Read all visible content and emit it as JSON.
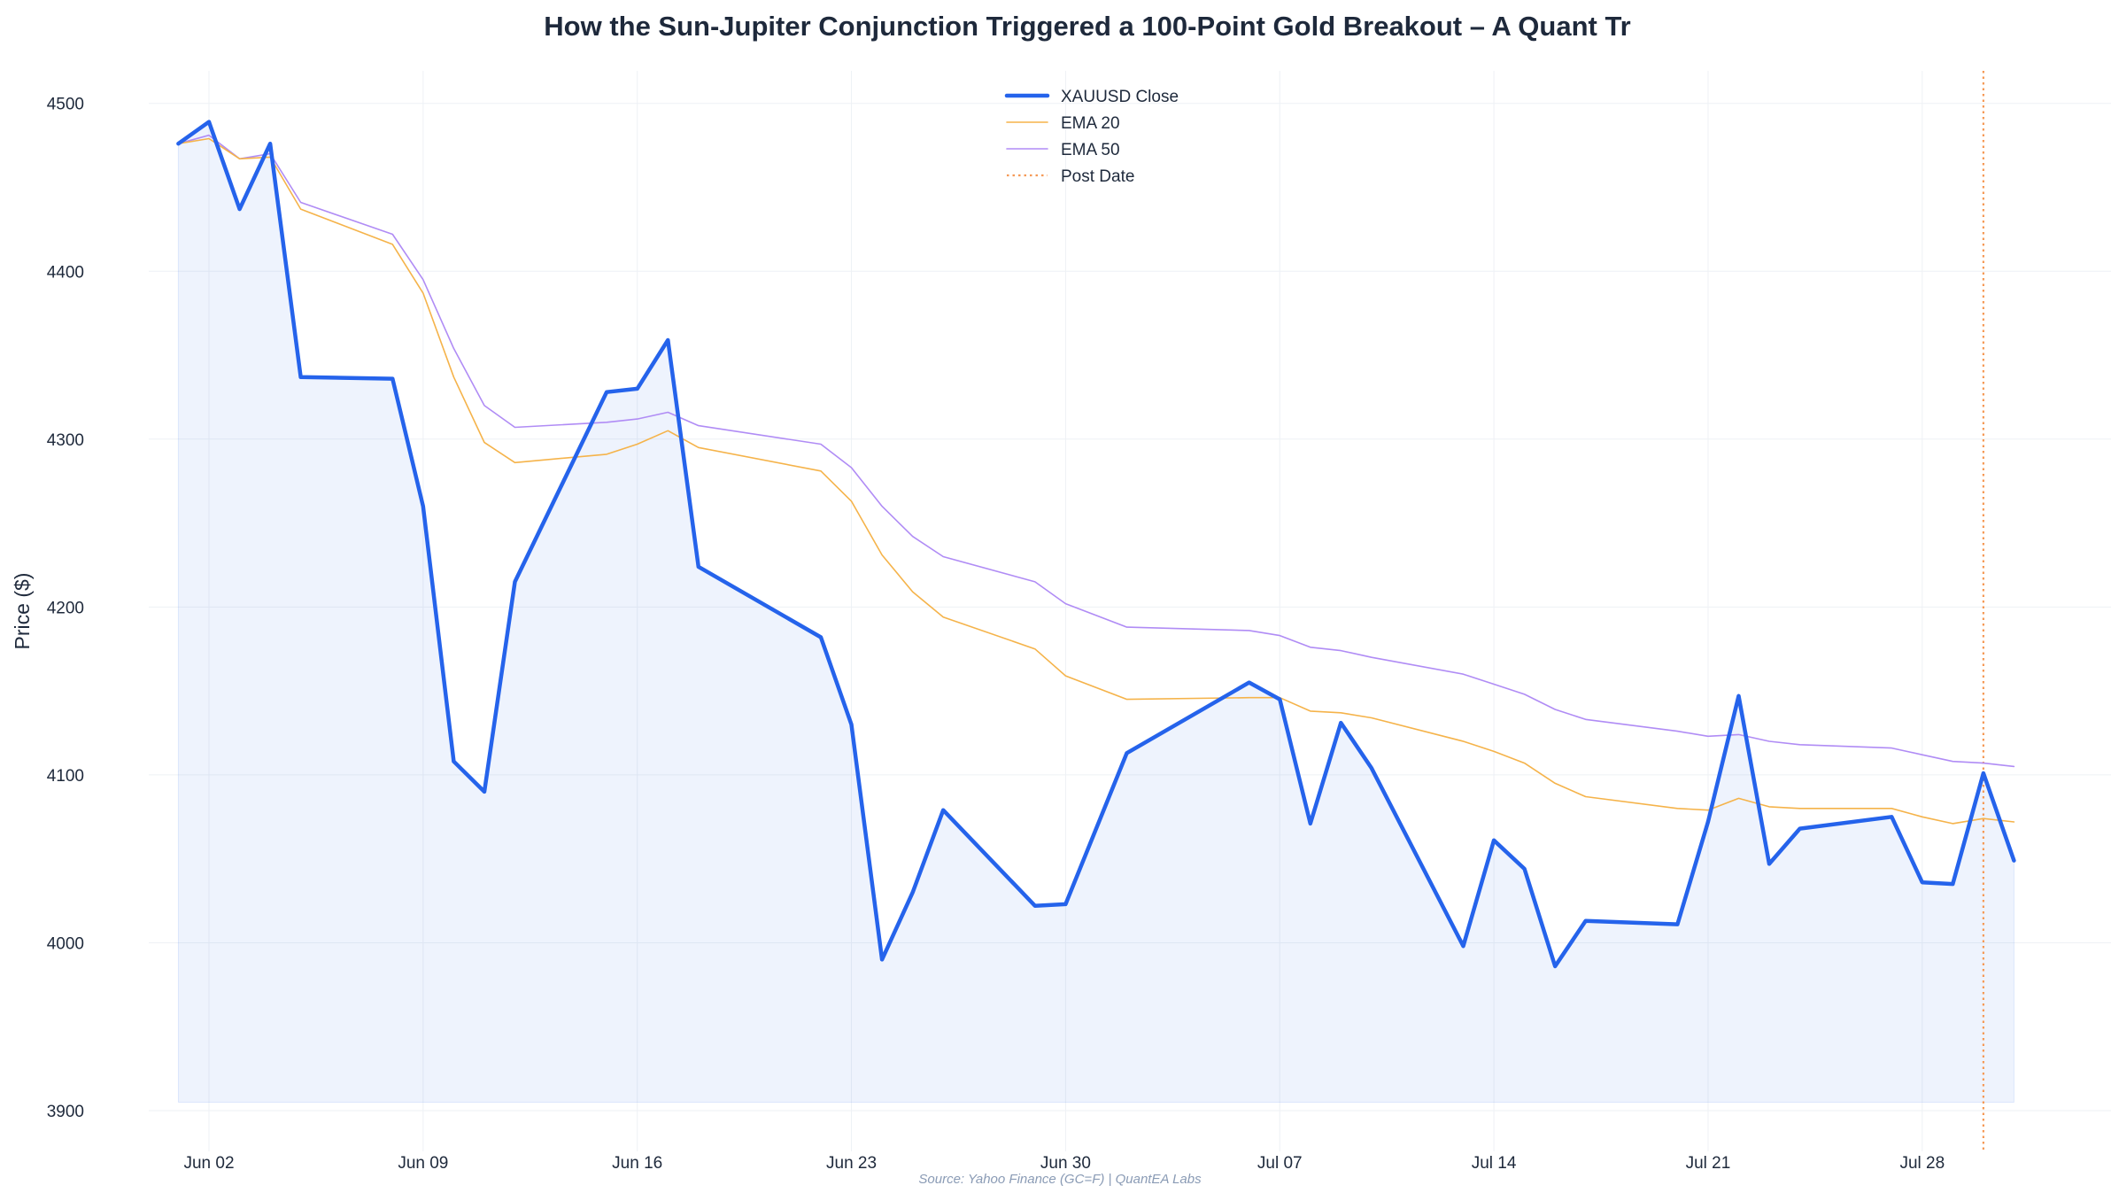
{
  "chart_data": {
    "type": "line",
    "title": "How the Sun-Jupiter Conjunction Triggered a 100-Point Gold Breakout – A Quant Tr",
    "xlabel": "",
    "ylabel": "Price ($)",
    "source": "Source: Yahoo Finance (GC=F) | QuantEA Labs",
    "ylim": [
      3900,
      4520
    ],
    "xlim": [
      "2025-05-30",
      "2025-08-02"
    ],
    "y_ticks": [
      3900,
      4000,
      4100,
      4200,
      4300,
      4400,
      4500
    ],
    "x_ticks": [
      {
        "date": "2025-06-02",
        "label": "Jun 02"
      },
      {
        "date": "2025-06-09",
        "label": "Jun 09"
      },
      {
        "date": "2025-06-16",
        "label": "Jun 16"
      },
      {
        "date": "2025-06-23",
        "label": "Jun 23"
      },
      {
        "date": "2025-06-30",
        "label": "Jun 30"
      },
      {
        "date": "2025-07-07",
        "label": "Jul 07"
      },
      {
        "date": "2025-07-14",
        "label": "Jul 14"
      },
      {
        "date": "2025-07-21",
        "label": "Jul 21"
      },
      {
        "date": "2025-07-28",
        "label": "Jul 28"
      }
    ],
    "grid": true,
    "legend_position": "top-center",
    "fill_floor": 3905,
    "dates": [
      "2025-06-01",
      "2025-06-02",
      "2025-06-03",
      "2025-06-04",
      "2025-06-05",
      "2025-06-08",
      "2025-06-09",
      "2025-06-10",
      "2025-06-11",
      "2025-06-12",
      "2025-06-15",
      "2025-06-16",
      "2025-06-17",
      "2025-06-18",
      "2025-06-22",
      "2025-06-23",
      "2025-06-24",
      "2025-06-25",
      "2025-06-26",
      "2025-06-29",
      "2025-06-30",
      "2025-07-02",
      "2025-07-06",
      "2025-07-07",
      "2025-07-08",
      "2025-07-09",
      "2025-07-10",
      "2025-07-13",
      "2025-07-14",
      "2025-07-15",
      "2025-07-16",
      "2025-07-17",
      "2025-07-20",
      "2025-07-21",
      "2025-07-22",
      "2025-07-23",
      "2025-07-24",
      "2025-07-27",
      "2025-07-28",
      "2025-07-29",
      "2025-07-30",
      "2025-07-31"
    ],
    "series": [
      {
        "name": "XAUUSD Close",
        "color": "#2563eb",
        "width": 4.5,
        "values": [
          4476,
          4489,
          4437,
          4476,
          4337,
          4336,
          4260,
          4108,
          4090,
          4215,
          4328,
          4330,
          4359,
          4224,
          4182,
          4130,
          3990,
          4030,
          4079,
          4022,
          4023,
          4113,
          4155,
          4145,
          4071,
          4131,
          4104,
          3998,
          4061,
          4044,
          3986,
          4013,
          4011,
          4072,
          4147,
          4047,
          4068,
          4075,
          4036,
          4035,
          4101,
          4049
        ]
      },
      {
        "name": "EMA 20",
        "color": "#f5b34a",
        "width": 1.6,
        "values": [
          4476,
          4479,
          4467,
          4468,
          4437,
          4416,
          4387,
          4337,
          4298,
          4286,
          4291,
          4297,
          4305,
          4295,
          4281,
          4263,
          4231,
          4209,
          4194,
          4175,
          4159,
          4145,
          4146,
          4146,
          4138,
          4137,
          4134,
          4120,
          4114,
          4107,
          4095,
          4087,
          4080,
          4079,
          4086,
          4081,
          4080,
          4080,
          4075,
          4071,
          4074,
          4072
        ]
      },
      {
        "name": "EMA 50",
        "color": "#b08cf5",
        "width": 1.6,
        "values": [
          4476,
          4481,
          4467,
          4470,
          4441,
          4422,
          4395,
          4354,
          4320,
          4307,
          4310,
          4312,
          4316,
          4308,
          4297,
          4283,
          4260,
          4242,
          4230,
          4215,
          4202,
          4188,
          4186,
          4183,
          4176,
          4174,
          4170,
          4160,
          4154,
          4148,
          4139,
          4133,
          4126,
          4123,
          4124,
          4120,
          4118,
          4116,
          4112,
          4108,
          4107,
          4105
        ]
      }
    ],
    "vlines": [
      {
        "name": "Post Date",
        "date": "2025-07-30",
        "color": "#f59a57",
        "style": "dotted"
      }
    ]
  }
}
